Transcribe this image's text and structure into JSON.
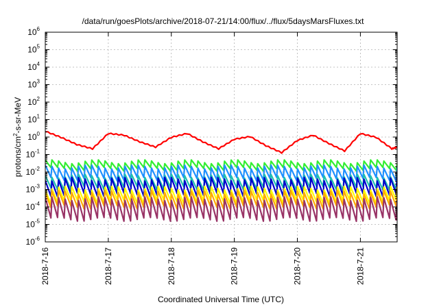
{
  "chart_data": {
    "type": "line",
    "title": "/data/run/goesPlots/archive/2018-07-21/14:00/flux/../flux/5daysMarsFluxes.txt",
    "xlabel": "Coordinated Universal Time (UTC)",
    "ylabel_parts": [
      "protons/cm",
      "2",
      "-s-sr-MeV"
    ],
    "y_scale": "log",
    "ylim": [
      1e-06,
      1000000.0
    ],
    "y_ticks": [
      {
        "base": "10",
        "exp": "6"
      },
      {
        "base": "10",
        "exp": "5"
      },
      {
        "base": "10",
        "exp": "4"
      },
      {
        "base": "10",
        "exp": "3"
      },
      {
        "base": "10",
        "exp": "2"
      },
      {
        "base": "10",
        "exp": "1"
      },
      {
        "base": "10",
        "exp": "0"
      },
      {
        "base": "10",
        "exp": "-1"
      },
      {
        "base": "10",
        "exp": "-2"
      },
      {
        "base": "10",
        "exp": "-3"
      },
      {
        "base": "10",
        "exp": "-4"
      },
      {
        "base": "10",
        "exp": "-5"
      },
      {
        "base": "10",
        "exp": "-6"
      }
    ],
    "xlim": [
      "2018-07-16",
      "2018-07-21 14:00"
    ],
    "x_ticks": [
      "2018-7-16",
      "2018-7-17",
      "2018-7-18",
      "2018-7-19",
      "2018-7-20",
      "2018-7-21"
    ],
    "grid": true,
    "series": [
      {
        "color": "#ff0000",
        "style": "flare-decay",
        "x": [
          "2018-07-16 00:00",
          "2018-07-16 06:00",
          "2018-07-16 12:00",
          "2018-07-16 18:00",
          "2018-07-17 00:00",
          "2018-07-17 06:00",
          "2018-07-17 12:00",
          "2018-07-17 18:00",
          "2018-07-18 00:00",
          "2018-07-18 06:00",
          "2018-07-18 12:00",
          "2018-07-18 18:00",
          "2018-07-19 00:00",
          "2018-07-19 06:00",
          "2018-07-19 12:00",
          "2018-07-19 18:00",
          "2018-07-20 00:00",
          "2018-07-20 06:00",
          "2018-07-20 12:00",
          "2018-07-20 18:00",
          "2018-07-21 00:00",
          "2018-07-21 06:00",
          "2018-07-21 12:00",
          "2018-07-21 14:00"
        ],
        "values": [
          2.0,
          0.9,
          0.35,
          0.2,
          1.5,
          1.2,
          0.5,
          0.25,
          0.9,
          1.5,
          0.5,
          0.2,
          0.7,
          1.0,
          0.3,
          0.12,
          0.6,
          1.2,
          0.4,
          0.15,
          1.5,
          0.9,
          0.2,
          0.25
        ]
      },
      {
        "color": "#33ee33",
        "style": "oscillating",
        "x_start": "2018-07-16",
        "x_end": "2018-07-21 14:00",
        "cycles": 53,
        "high": 0.04,
        "low": 0.015
      },
      {
        "color": "#1e90ff",
        "style": "oscillating",
        "x_start": "2018-07-16",
        "x_end": "2018-07-21 14:00",
        "cycles": 53,
        "high": 0.02,
        "low": 0.004
      },
      {
        "color": "#20c0b0",
        "style": "oscillating",
        "x_start": "2018-07-16",
        "x_end": "2018-07-21 14:00",
        "cycles": 53,
        "high": 0.006,
        "low": 0.0012
      },
      {
        "color": "#0000cc",
        "style": "oscillating",
        "x_start": "2018-07-16",
        "x_end": "2018-07-21 14:00",
        "cycles": 53,
        "high": 0.004,
        "low": 0.0005
      },
      {
        "color": "#ffff00",
        "style": "oscillating",
        "x_start": "2018-07-16",
        "x_end": "2018-07-21 14:00",
        "cycles": 53,
        "high": 0.0012,
        "low": 0.0002
      },
      {
        "color": "#ffaa00",
        "style": "oscillating",
        "x_start": "2018-07-16",
        "x_end": "2018-07-21 14:00",
        "cycles": 53,
        "high": 0.0007,
        "low": 0.0001
      },
      {
        "color": "#993366",
        "style": "oscillating",
        "x_start": "2018-07-16",
        "x_end": "2018-07-21 14:00",
        "cycles": 53,
        "high": 0.0003,
        "low": 2e-05
      }
    ]
  }
}
